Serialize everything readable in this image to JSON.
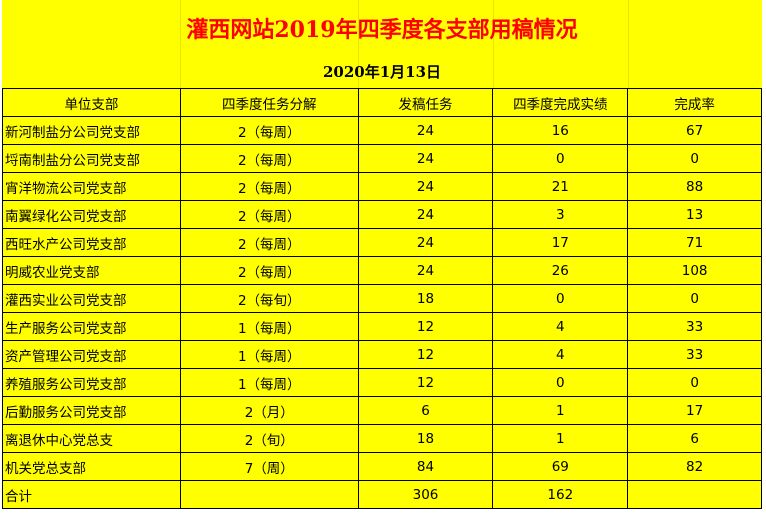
{
  "title": "灌西网站2019年四季度各支部用稿情况",
  "date": "2020年1月13日",
  "colors": {
    "background": "#ffff00",
    "title": "#ff0000",
    "border": "#000000"
  },
  "table": {
    "headers": [
      "单位支部",
      "四季度任务分解",
      "发稿任务",
      "四季度完成实绩",
      "完成率"
    ],
    "rows": [
      [
        "新河制盐分公司党支部",
        "2（每周）",
        "24",
        "16",
        "67"
      ],
      [
        "埒南制盐分公司党支部",
        "2（每周）",
        "24",
        "0",
        "0"
      ],
      [
        "宵洋物流公司党支部",
        "2（每周）",
        "24",
        "21",
        "88"
      ],
      [
        "南翼绿化公司党支部",
        "2（每周）",
        "24",
        "3",
        "13"
      ],
      [
        "西旺水产公司党支部",
        "2（每周）",
        "24",
        "17",
        "71"
      ],
      [
        "明威农业党支部",
        "2（每周）",
        "24",
        "26",
        "108"
      ],
      [
        "灌西实业公司党支部",
        "2（每旬）",
        "18",
        "0",
        "0"
      ],
      [
        "生产服务公司党支部",
        "1（每周）",
        "12",
        "4",
        "33"
      ],
      [
        "资产管理公司党支部",
        "1（每周）",
        "12",
        "4",
        "33"
      ],
      [
        "养殖服务公司党支部",
        "1（每周）",
        "12",
        "0",
        "0"
      ],
      [
        "后勤服务公司党支部",
        "2（月）",
        "6",
        "1",
        "17"
      ],
      [
        "离退休中心党总支",
        "2（旬）",
        "18",
        "1",
        "6"
      ],
      [
        "机关党总支部",
        "7（周）",
        "84",
        "69",
        "82"
      ]
    ],
    "total": [
      "合计",
      "",
      "306",
      "162",
      ""
    ]
  }
}
